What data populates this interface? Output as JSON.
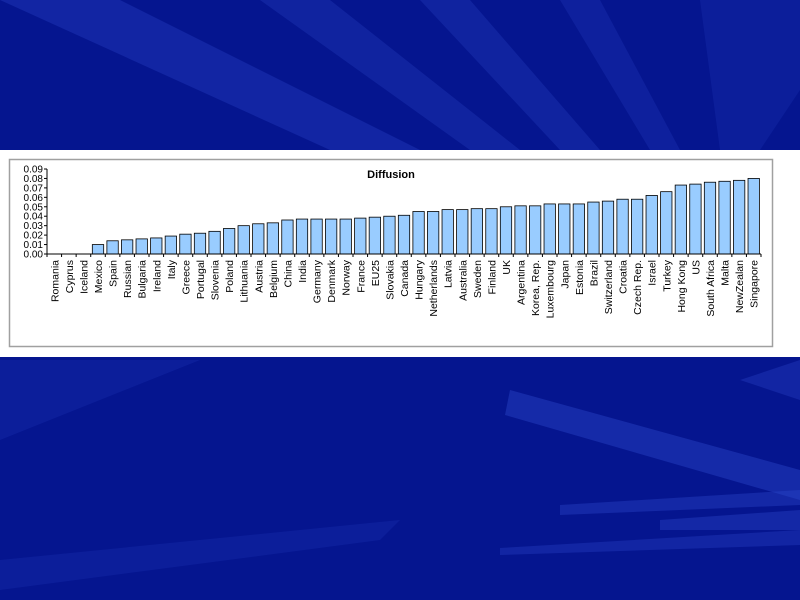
{
  "slide": {
    "background_color": "#05158f",
    "ray_color": "#2a45c8"
  },
  "chart_data": {
    "type": "bar",
    "title": "Diffusion",
    "xlabel": "",
    "ylabel": "",
    "ylim": [
      0,
      0.09
    ],
    "yticks": [
      "0.00",
      "0.01",
      "0.02",
      "0.03",
      "0.04",
      "0.05",
      "0.06",
      "0.07",
      "0.08",
      "0.09"
    ],
    "grid": false,
    "legend": "none",
    "bar_color": "#99ccff",
    "categories": [
      "Romania",
      "Cyprus",
      "Iceland",
      "Mexico",
      "Spain",
      "Russian",
      "Bulgaria",
      "Ireland",
      "Italy",
      "Greece",
      "Portugal",
      "Slovenia",
      "Poland",
      "Lithuania",
      "Austria",
      "Belgium",
      "China",
      "India",
      "Germany",
      "Denmark",
      "Norway",
      "France",
      "EU25",
      "Slovakia",
      "Canada",
      "Hungary",
      "Netherlands",
      "Latvia",
      "Australia",
      "Sweden",
      "Finland",
      "UK",
      "Argentina",
      "Korea, Rep.",
      "Luxembourg",
      "Japan",
      "Estonia",
      "Brazil",
      "Switzerland",
      "Croatia",
      "Czech Rep.",
      "Israel",
      "Turkey",
      "Hong Kong",
      "US",
      "South Africa",
      "Malta",
      "NewZealan",
      "Singapore"
    ],
    "values": [
      0,
      0,
      0,
      0.01,
      0.014,
      0.015,
      0.016,
      0.017,
      0.019,
      0.021,
      0.022,
      0.024,
      0.027,
      0.03,
      0.032,
      0.033,
      0.036,
      0.037,
      0.037,
      0.037,
      0.037,
      0.038,
      0.039,
      0.04,
      0.041,
      0.045,
      0.045,
      0.047,
      0.047,
      0.048,
      0.048,
      0.05,
      0.051,
      0.051,
      0.053,
      0.053,
      0.053,
      0.055,
      0.056,
      0.058,
      0.058,
      0.062,
      0.066,
      0.073,
      0.074,
      0.076,
      0.077,
      0.078,
      0.08
    ]
  }
}
